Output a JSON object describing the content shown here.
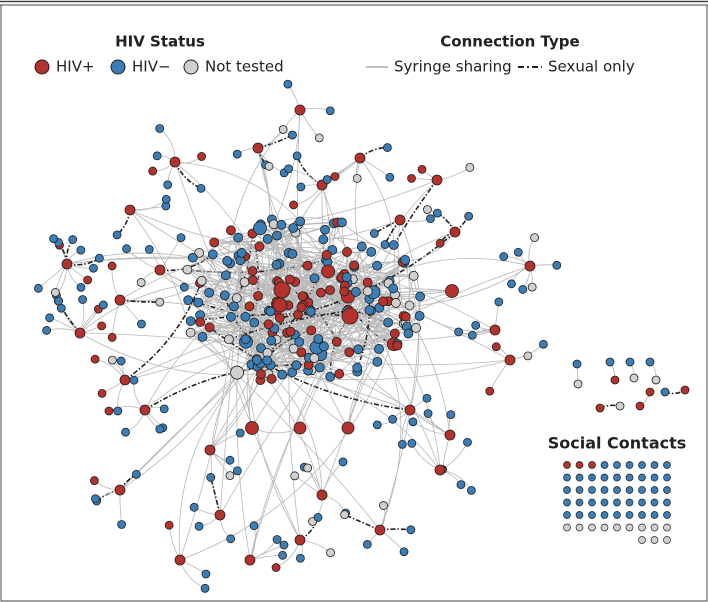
{
  "legend": {
    "status_title": "HIV Status",
    "status_items": [
      "HIV+",
      "HIV−",
      "Not tested"
    ],
    "connection_title": "Connection Type",
    "connection_items": [
      "Syringe sharing",
      "Sexual only"
    ]
  },
  "social_title": "Social Contacts"
}
